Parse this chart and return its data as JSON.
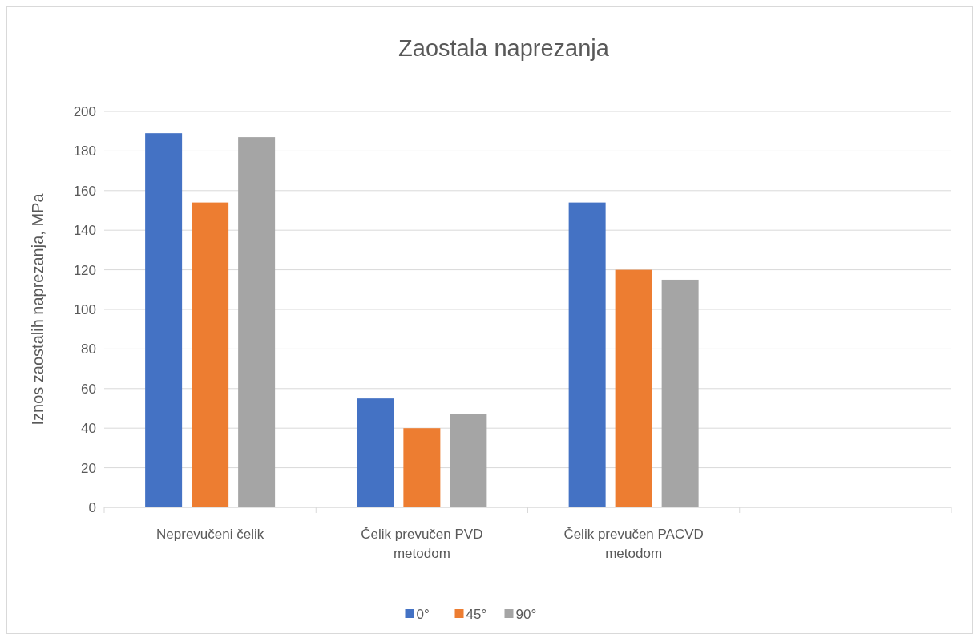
{
  "chart_data": {
    "type": "bar",
    "title": "Zaostala naprezanja",
    "ylabel": "Iznos zaostalih naprezanja, MPa",
    "categories": [
      "Neprevučeni čelik",
      "Čelik prevučen PVD metodom",
      "Čelik prevučen PACVD metodom",
      null
    ],
    "series": [
      {
        "name": "0°",
        "color": "#4472c4",
        "values": [
          189,
          55,
          154,
          null
        ]
      },
      {
        "name": "45°",
        "color": "#ed7d31",
        "values": [
          154,
          40,
          120,
          null
        ]
      },
      {
        "name": "90°",
        "color": "#a5a5a5",
        "values": [
          187,
          47,
          115,
          null
        ]
      }
    ],
    "ylim": [
      0,
      200
    ],
    "yticks": [
      0,
      20,
      40,
      60,
      80,
      100,
      120,
      140,
      160,
      180,
      200
    ],
    "grid": "y",
    "legend": "bottom"
  }
}
